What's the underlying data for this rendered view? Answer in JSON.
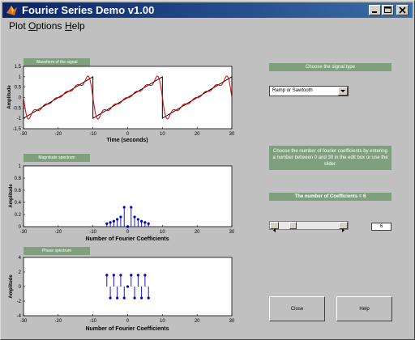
{
  "window": {
    "title": "Fourier Series Demo v1.00"
  },
  "menu": [
    {
      "pre": "Plot ",
      "ul": "O",
      "post": "ptions"
    },
    {
      "pre": "",
      "ul": "H",
      "post": "elp"
    }
  ],
  "plots": {
    "waveform": {
      "tag": "Waveform of the signal",
      "xlabel": "Time (seconds)",
      "ylabel": "Amplitude",
      "xticks": [
        "-30",
        "-20",
        "-10",
        "0",
        "10",
        "20",
        "30"
      ],
      "yticks": [
        "1.5",
        "1",
        "0.5",
        "0",
        "-0.5",
        "-1",
        "-1.5"
      ]
    },
    "magnitude": {
      "tag": "Magnitude spectrum",
      "xlabel": "Number of Fourier Coefficients",
      "ylabel": "Amplitude",
      "xticks": [
        "-30",
        "-20",
        "-10",
        "0",
        "10",
        "20",
        "30"
      ],
      "yticks": [
        "1",
        "0.8",
        "0.6",
        "0.4",
        "0.2",
        "0"
      ]
    },
    "phase": {
      "tag": "Phase spectrum",
      "xlabel": "Number of Fourier Coefficients",
      "ylabel": "Amplitude",
      "xticks": [
        "-30",
        "-20",
        "-10",
        "0",
        "10",
        "20",
        "30"
      ],
      "yticks": [
        "4",
        "2",
        "0",
        "-2",
        "-4"
      ]
    }
  },
  "controls": {
    "signal_type_label": "Choose the signal type",
    "signal_type_value": "Ramp or Sawtooth",
    "coeff_instructions": "Choose the number of fourier coefficients by entering a number between 0 and 30 in the edit box or use the slider.",
    "coeff_count_label": "The number of Coefficients = 6",
    "edit_value": "6",
    "close_label": "Close",
    "help_label": "Help"
  },
  "chart_data": [
    {
      "type": "line",
      "x_range": [
        -30,
        30
      ],
      "y_range": [
        -1.5,
        1.5
      ],
      "period": 20,
      "series": [
        {
          "color": "#000000",
          "kind": "ideal sawtooth"
        },
        {
          "color": "#dd0000",
          "kind": "fourier approximation"
        }
      ]
    },
    {
      "type": "scatter",
      "stem": true,
      "x_range": [
        -30,
        30
      ],
      "y_range": [
        0,
        1
      ],
      "x": [
        -6,
        -5,
        -4,
        -3,
        -2,
        -1,
        0,
        1,
        2,
        3,
        4,
        5,
        6
      ],
      "values": [
        0.05,
        0.07,
        0.09,
        0.12,
        0.16,
        0.32,
        0,
        0.32,
        0.16,
        0.12,
        0.09,
        0.07,
        0.05
      ],
      "color": "#0000cc"
    },
    {
      "type": "scatter",
      "stem": true,
      "x_range": [
        -30,
        30
      ],
      "y_range": [
        -4,
        4
      ],
      "x": [
        -6,
        -5,
        -4,
        -3,
        -2,
        -1,
        0,
        1,
        2,
        3,
        4,
        5,
        6
      ],
      "values": [
        1.57,
        -1.57,
        1.57,
        -1.57,
        1.57,
        -1.57,
        0,
        1.57,
        -1.57,
        1.57,
        -1.57,
        1.57,
        -1.57
      ],
      "color": "#0000cc"
    }
  ]
}
